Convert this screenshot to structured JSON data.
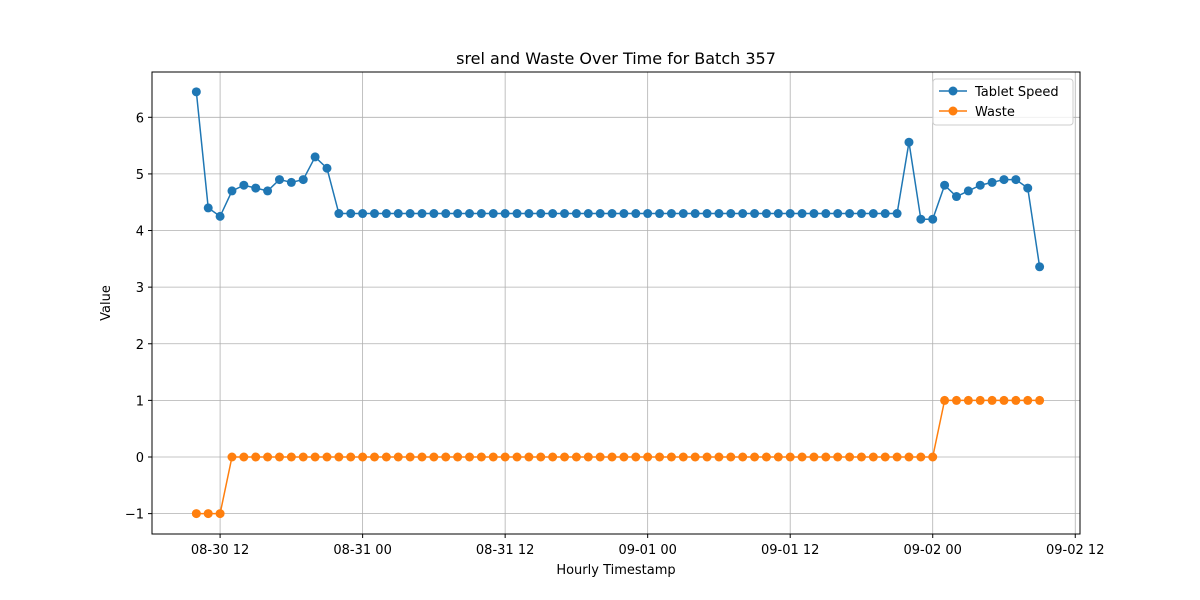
{
  "chart_data": {
    "type": "line",
    "title": "srel and Waste Over Time for Batch 357",
    "xlabel": "Hourly Timestamp",
    "ylabel": "Value",
    "x": [
      "08-30 10",
      "08-30 11",
      "08-30 12",
      "08-30 13",
      "08-30 14",
      "08-30 15",
      "08-30 16",
      "08-30 17",
      "08-30 18",
      "08-30 19",
      "08-30 20",
      "08-30 21",
      "08-30 22",
      "08-30 23",
      "08-31 00",
      "08-31 01",
      "08-31 02",
      "08-31 03",
      "08-31 04",
      "08-31 05",
      "08-31 06",
      "08-31 07",
      "08-31 08",
      "08-31 09",
      "08-31 10",
      "08-31 11",
      "08-31 12",
      "08-31 13",
      "08-31 14",
      "08-31 15",
      "08-31 16",
      "08-31 17",
      "08-31 18",
      "08-31 19",
      "08-31 20",
      "08-31 21",
      "08-31 22",
      "08-31 23",
      "09-01 00",
      "09-01 01",
      "09-01 02",
      "09-01 03",
      "09-01 04",
      "09-01 05",
      "09-01 06",
      "09-01 07",
      "09-01 08",
      "09-01 09",
      "09-01 10",
      "09-01 11",
      "09-01 12",
      "09-01 13",
      "09-01 14",
      "09-01 15",
      "09-01 16",
      "09-01 17",
      "09-01 18",
      "09-01 19",
      "09-01 20",
      "09-01 21",
      "09-01 22",
      "09-01 23",
      "09-02 00",
      "09-02 01",
      "09-02 02",
      "09-02 03",
      "09-02 04",
      "09-02 05",
      "09-02 06",
      "09-02 07",
      "09-02 08",
      "09-02 09"
    ],
    "series": [
      {
        "name": "Tablet Speed",
        "color": "#1f77b4",
        "values": [
          6.45,
          4.4,
          4.25,
          4.7,
          4.8,
          4.75,
          4.7,
          4.9,
          4.85,
          4.9,
          5.3,
          5.1,
          4.3,
          4.3,
          4.3,
          4.3,
          4.3,
          4.3,
          4.3,
          4.3,
          4.3,
          4.3,
          4.3,
          4.3,
          4.3,
          4.3,
          4.3,
          4.3,
          4.3,
          4.3,
          4.3,
          4.3,
          4.3,
          4.3,
          4.3,
          4.3,
          4.3,
          4.3,
          4.3,
          4.3,
          4.3,
          4.3,
          4.3,
          4.3,
          4.3,
          4.3,
          4.3,
          4.3,
          4.3,
          4.3,
          4.3,
          4.3,
          4.3,
          4.3,
          4.3,
          4.3,
          4.3,
          4.3,
          4.3,
          4.3,
          5.56,
          4.2,
          4.2,
          4.8,
          4.6,
          4.7,
          4.8,
          4.85,
          4.9,
          4.9,
          4.75,
          3.36
        ]
      },
      {
        "name": "Waste",
        "color": "#ff7f0e",
        "values": [
          -1,
          -1,
          -1,
          0,
          0,
          0,
          0,
          0,
          0,
          0,
          0,
          0,
          0,
          0,
          0,
          0,
          0,
          0,
          0,
          0,
          0,
          0,
          0,
          0,
          0,
          0,
          0,
          0,
          0,
          0,
          0,
          0,
          0,
          0,
          0,
          0,
          0,
          0,
          0,
          0,
          0,
          0,
          0,
          0,
          0,
          0,
          0,
          0,
          0,
          0,
          0,
          0,
          0,
          0,
          0,
          0,
          0,
          0,
          0,
          0,
          0,
          0,
          0,
          1,
          1,
          1,
          1,
          1,
          1,
          1,
          1,
          1
        ]
      }
    ],
    "xlim": [
      "08-30 06:16",
      "09-02 12:24"
    ],
    "xticks": [
      "08-30 12",
      "08-31 00",
      "08-31 12",
      "09-01 00",
      "09-01 12",
      "09-02 00",
      "09-02 12"
    ],
    "ylim": [
      -1.36,
      6.8
    ],
    "yticks": [
      {
        "value": -1,
        "label": "−1"
      },
      0,
      1,
      2,
      3,
      4,
      5,
      6
    ],
    "grid": true,
    "legend": "upper right"
  }
}
